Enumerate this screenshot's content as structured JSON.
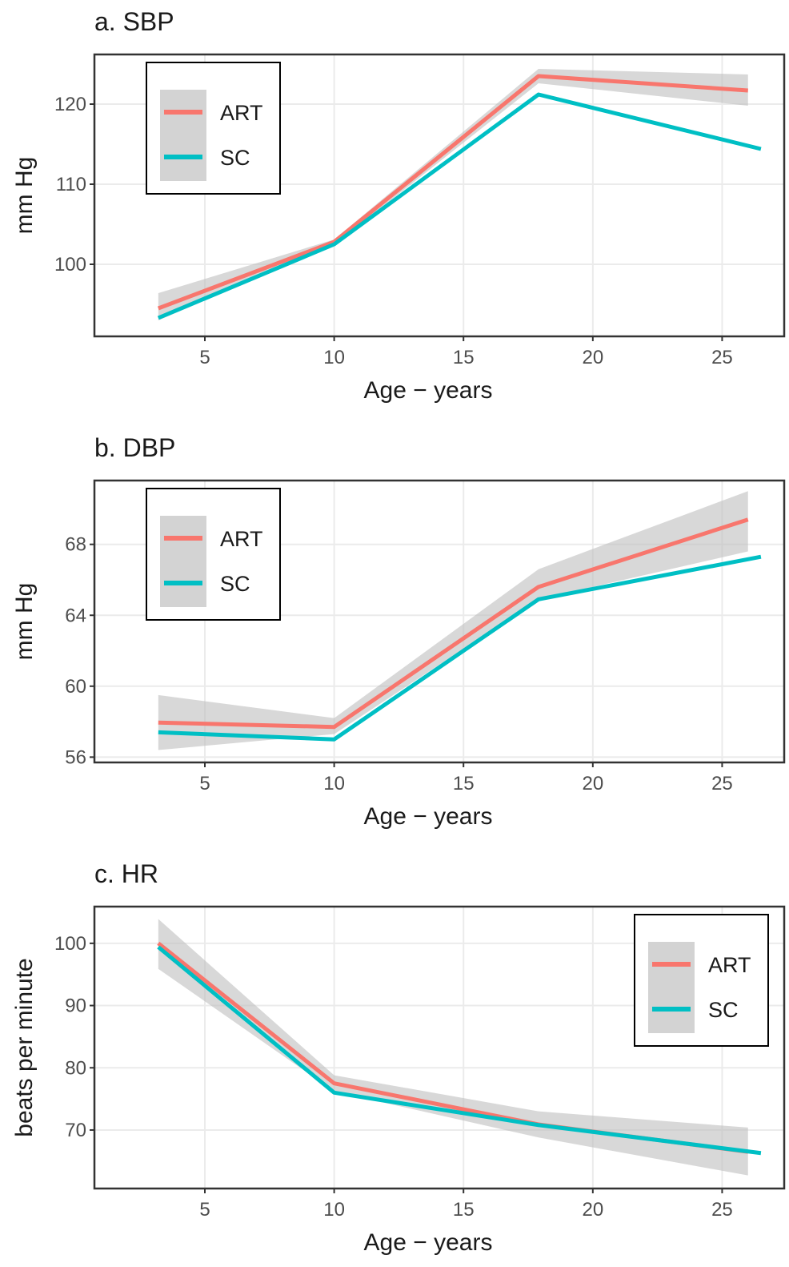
{
  "chart_data": [
    {
      "type": "line",
      "title": "a. SBP",
      "y_label": "mm Hg",
      "x_label": "Age − years",
      "xlim": [
        0.73,
        27.4
      ],
      "xticks": [
        5,
        10,
        15,
        20,
        25
      ],
      "ylim": [
        91,
        126.2
      ],
      "yticks": [
        100,
        110,
        120
      ],
      "grid": true,
      "legend": "top-left",
      "series": [
        {
          "name": "ART",
          "color": "#F8766D",
          "x": [
            3.2,
            10,
            17.9,
            26
          ],
          "values": [
            94.5,
            102.8,
            123.5,
            121.7
          ],
          "lower": [
            93,
            102.4,
            122.6,
            119.8
          ],
          "upper": [
            96.4,
            103.1,
            124.4,
            123.7
          ]
        },
        {
          "name": "SC",
          "color": "#00BFC4",
          "x": [
            3.2,
            10,
            17.9,
            26.5
          ],
          "values": [
            93.3,
            102.5,
            121.2,
            114.4
          ]
        }
      ]
    },
    {
      "type": "line",
      "title": "b. DBP",
      "y_label": "mm Hg",
      "x_label": "Age − years",
      "xlim": [
        0.73,
        27.4
      ],
      "xticks": [
        5,
        10,
        15,
        20,
        25
      ],
      "ylim": [
        55.7,
        71.6
      ],
      "yticks": [
        56,
        60,
        64,
        68
      ],
      "grid": true,
      "legend": "top-left",
      "series": [
        {
          "name": "ART",
          "color": "#F8766D",
          "x": [
            3.2,
            10,
            17.9,
            26
          ],
          "values": [
            57.95,
            57.7,
            65.6,
            69.4
          ],
          "lower": [
            56.4,
            57.3,
            64.9,
            67.6
          ],
          "upper": [
            59.5,
            58.2,
            66.6,
            71.0
          ]
        },
        {
          "name": "SC",
          "color": "#00BFC4",
          "x": [
            3.2,
            10,
            17.9,
            26.5
          ],
          "values": [
            57.4,
            57.0,
            64.9,
            67.3
          ]
        }
      ]
    },
    {
      "type": "line",
      "title": "c. HR",
      "y_label": "beats per minute",
      "x_label": "Age − years",
      "xlim": [
        0.73,
        27.4
      ],
      "xticks": [
        5,
        10,
        15,
        20,
        25
      ],
      "ylim": [
        60.6,
        105.9
      ],
      "yticks": [
        70,
        80,
        90,
        100
      ],
      "grid": true,
      "legend": "top-right",
      "series": [
        {
          "name": "ART",
          "color": "#F8766D",
          "x": [
            3.2,
            10,
            17.9,
            26
          ],
          "values": [
            100,
            77.5,
            70.9,
            66.5
          ],
          "lower": [
            95.9,
            76.2,
            68.8,
            62.7
          ],
          "upper": [
            103.9,
            78.8,
            73,
            70.4
          ]
        },
        {
          "name": "SC",
          "color": "#00BFC4",
          "x": [
            3.2,
            10,
            17.9,
            26.5
          ],
          "values": [
            99.4,
            76.0,
            70.8,
            66.3
          ]
        }
      ]
    }
  ]
}
